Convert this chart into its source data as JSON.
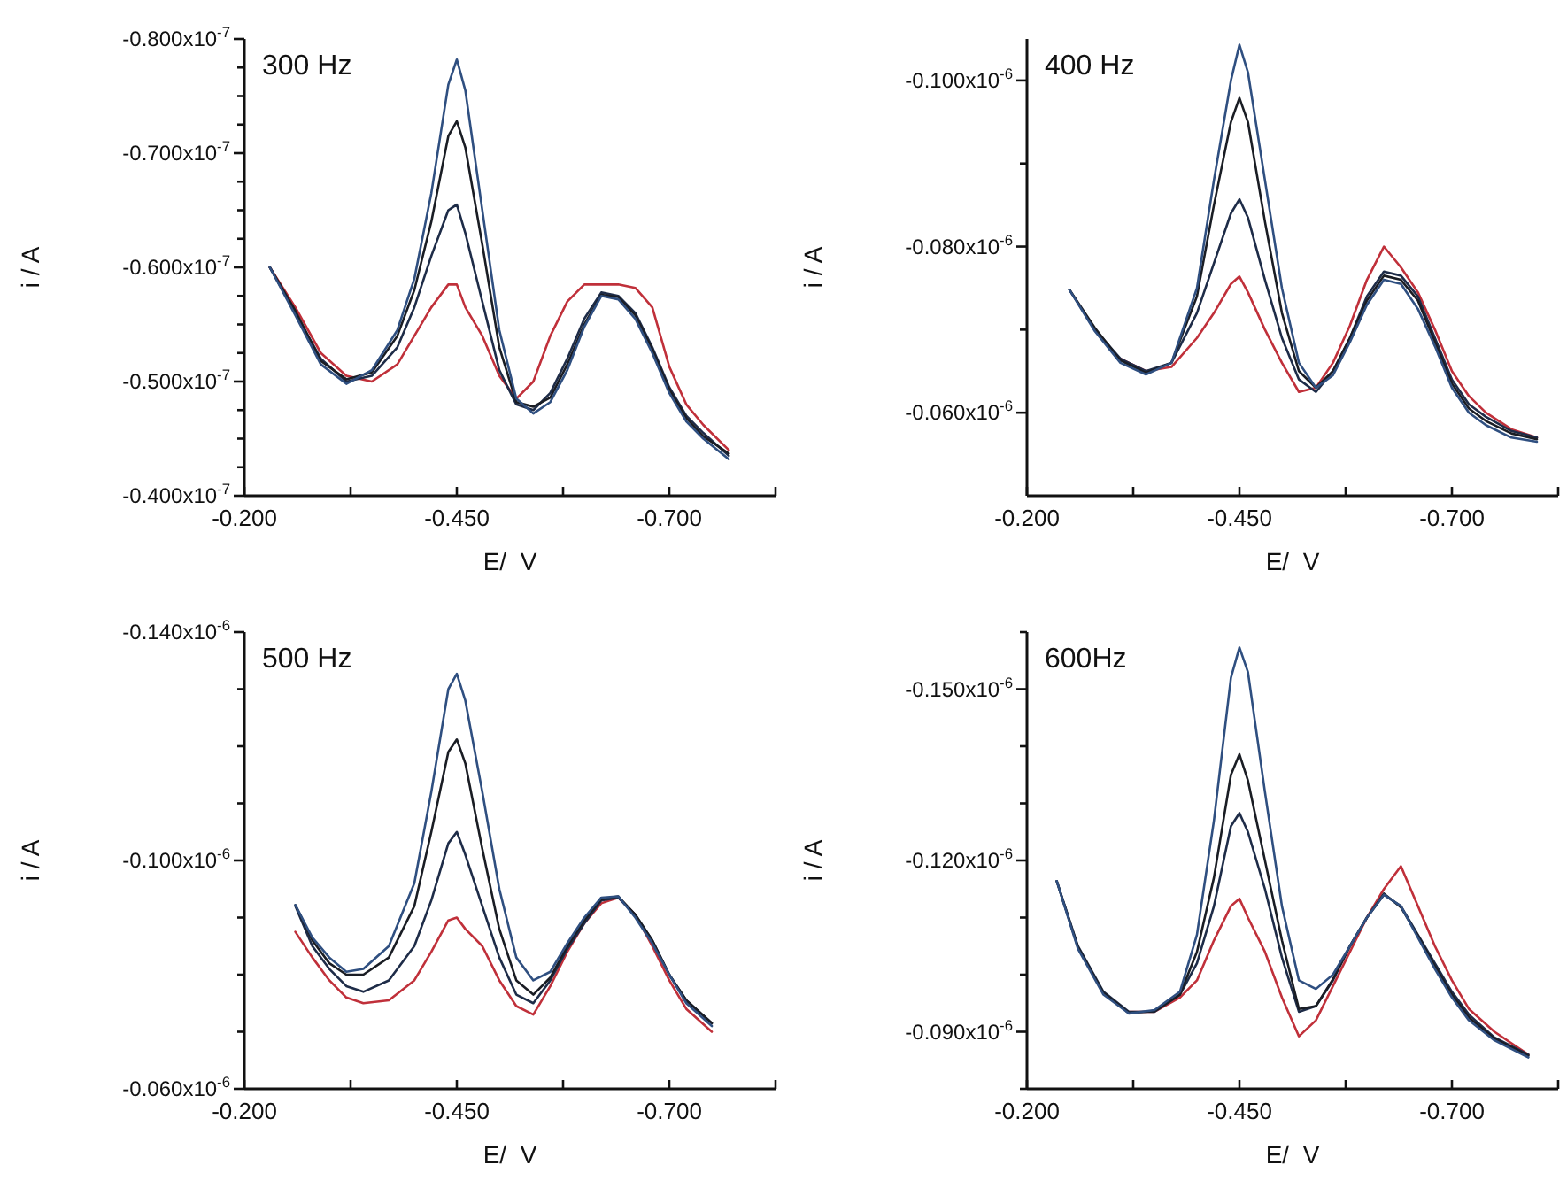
{
  "chart_data": [
    {
      "type": "line",
      "title": "300 Hz",
      "xlabel": "E/  V",
      "ylabel": "i / A",
      "xlim": [
        -0.2,
        -0.825
      ],
      "xticks": [
        {
          "value": -0.2,
          "label": "-0.200"
        },
        {
          "value": -0.325,
          "label": null
        },
        {
          "value": -0.45,
          "label": "-0.450"
        },
        {
          "value": -0.575,
          "label": null
        },
        {
          "value": -0.7,
          "label": "-0.700"
        },
        {
          "value": -0.825,
          "label": null
        }
      ],
      "ylim": [
        -4e-08,
        -8e-08
      ],
      "yticks": [
        {
          "value": -4e-08,
          "label": "-0.400x10$^{-7}$"
        },
        {
          "value": -4.25e-08,
          "label": null
        },
        {
          "value": -4.5e-08,
          "label": null
        },
        {
          "value": -4.75e-08,
          "label": null
        },
        {
          "value": -5e-08,
          "label": "-0.500x10$^{-7}$"
        },
        {
          "value": -5.25e-08,
          "label": null
        },
        {
          "value": -5.5e-08,
          "label": null
        },
        {
          "value": -5.75e-08,
          "label": null
        },
        {
          "value": -6e-08,
          "label": "-0.600x10$^{-7}$"
        },
        {
          "value": -6.25e-08,
          "label": null
        },
        {
          "value": -6.5e-08,
          "label": null
        },
        {
          "value": -6.75e-08,
          "label": null
        },
        {
          "value": -7e-08,
          "label": "-0.700x10$^{-7}$"
        },
        {
          "value": -7.25e-08,
          "label": null
        },
        {
          "value": -7.5e-08,
          "label": null
        },
        {
          "value": -7.75e-08,
          "label": null
        },
        {
          "value": -8e-08,
          "label": "-0.800x10$^{-7}$"
        }
      ],
      "x": [
        -0.23,
        -0.26,
        -0.29,
        -0.32,
        -0.35,
        -0.38,
        -0.4,
        -0.42,
        -0.44,
        -0.45,
        -0.46,
        -0.48,
        -0.5,
        -0.52,
        -0.54,
        -0.56,
        -0.58,
        -0.6,
        -0.62,
        -0.64,
        -0.66,
        -0.68,
        -0.7,
        -0.72,
        -0.74,
        -0.77
      ],
      "series": [
        {
          "color": "#c0303a",
          "values": [
            -6e-08,
            -5.65e-08,
            -5.25e-08,
            -5.05e-08,
            -5e-08,
            -5.15e-08,
            -5.4e-08,
            -5.65e-08,
            -5.85e-08,
            -5.85e-08,
            -5.65e-08,
            -5.4e-08,
            -5.05e-08,
            -4.85e-08,
            -5e-08,
            -5.4e-08,
            -5.7e-08,
            -5.85e-08,
            -5.85e-08,
            -5.85e-08,
            -5.82e-08,
            -5.65e-08,
            -5.13e-08,
            -4.8e-08,
            -4.62e-08,
            -4.4e-08
          ]
        },
        {
          "color": "#1e2c48",
          "values": [
            -6e-08,
            -5.6e-08,
            -5.2e-08,
            -5e-08,
            -5.05e-08,
            -5.3e-08,
            -5.65e-08,
            -6.1e-08,
            -6.5e-08,
            -6.55e-08,
            -6.3e-08,
            -5.7e-08,
            -5.1e-08,
            -4.8e-08,
            -4.75e-08,
            -4.9e-08,
            -5.2e-08,
            -5.55e-08,
            -5.78e-08,
            -5.75e-08,
            -5.6e-08,
            -5.3e-08,
            -4.95e-08,
            -4.7e-08,
            -4.55e-08,
            -4.35e-08
          ]
        },
        {
          "color": "#1a1d24",
          "values": [
            -6e-08,
            -5.62e-08,
            -5.18e-08,
            -5.02e-08,
            -5.08e-08,
            -5.4e-08,
            -5.8e-08,
            -6.4e-08,
            -7.15e-08,
            -7.28e-08,
            -7.05e-08,
            -6.2e-08,
            -5.3e-08,
            -4.82e-08,
            -4.78e-08,
            -4.86e-08,
            -5.15e-08,
            -5.5e-08,
            -5.76e-08,
            -5.74e-08,
            -5.58e-08,
            -5.28e-08,
            -4.93e-08,
            -4.68e-08,
            -4.52e-08,
            -4.37e-08
          ]
        },
        {
          "color": "#2f4f80",
          "values": [
            -6e-08,
            -5.58e-08,
            -5.15e-08,
            -4.98e-08,
            -5.1e-08,
            -5.45e-08,
            -5.9e-08,
            -6.65e-08,
            -7.6e-08,
            -7.82e-08,
            -7.55e-08,
            -6.5e-08,
            -5.45e-08,
            -4.85e-08,
            -4.72e-08,
            -4.82e-08,
            -5.1e-08,
            -5.48e-08,
            -5.75e-08,
            -5.72e-08,
            -5.55e-08,
            -5.25e-08,
            -4.9e-08,
            -4.65e-08,
            -4.5e-08,
            -4.32e-08
          ]
        }
      ]
    },
    {
      "type": "line",
      "title": "400 Hz",
      "xlabel": "E/  V",
      "ylabel": "i / A",
      "xlim": [
        -0.2,
        -0.825
      ],
      "xticks": [
        {
          "value": -0.2,
          "label": "-0.200"
        },
        {
          "value": -0.325,
          "label": null
        },
        {
          "value": -0.45,
          "label": "-0.450"
        },
        {
          "value": -0.575,
          "label": null
        },
        {
          "value": -0.7,
          "label": "-0.700"
        },
        {
          "value": -0.825,
          "label": null
        }
      ],
      "ylim": [
        -5e-08,
        -1.05e-07
      ],
      "yticks": [
        {
          "value": -6e-08,
          "label": "-0.060x10$^{-6}$"
        },
        {
          "value": -7e-08,
          "label": null
        },
        {
          "value": -8e-08,
          "label": "-0.080x10$^{-6}$"
        },
        {
          "value": -9e-08,
          "label": null
        },
        {
          "value": -1e-07,
          "label": "-0.100x10$^{-6}$"
        }
      ],
      "x": [
        -0.25,
        -0.28,
        -0.31,
        -0.34,
        -0.37,
        -0.4,
        -0.42,
        -0.44,
        -0.45,
        -0.46,
        -0.48,
        -0.5,
        -0.52,
        -0.54,
        -0.56,
        -0.58,
        -0.6,
        -0.62,
        -0.64,
        -0.66,
        -0.68,
        -0.7,
        -0.72,
        -0.74,
        -0.77,
        -0.8
      ],
      "series": [
        {
          "color": "#c0303a",
          "values": [
            null,
            null,
            -6.65e-08,
            -6.5e-08,
            -6.55e-08,
            -6.9e-08,
            -7.2e-08,
            -7.55e-08,
            -7.64e-08,
            -7.45e-08,
            -7e-08,
            -6.6e-08,
            -6.25e-08,
            -6.3e-08,
            -6.6e-08,
            -7.05e-08,
            -7.6e-08,
            -8e-08,
            -7.75e-08,
            -7.45e-08,
            -7e-08,
            -6.5e-08,
            -6.2e-08,
            -6e-08,
            -5.8e-08,
            -5.7e-08
          ]
        },
        {
          "color": "#1e2c48",
          "values": [
            -7.48e-08,
            -7e-08,
            -6.65e-08,
            -6.5e-08,
            -6.6e-08,
            -7.2e-08,
            -7.8e-08,
            -8.4e-08,
            -8.57e-08,
            -8.35e-08,
            -7.6e-08,
            -6.9e-08,
            -6.4e-08,
            -6.25e-08,
            -6.5e-08,
            -6.9e-08,
            -7.4e-08,
            -7.7e-08,
            -7.65e-08,
            -7.4e-08,
            -6.9e-08,
            -6.4e-08,
            -6.1e-08,
            -5.95e-08,
            -5.78e-08,
            -5.7e-08
          ]
        },
        {
          "color": "#1a1d24",
          "values": [
            -7.48e-08,
            -7.02e-08,
            -6.63e-08,
            -6.48e-08,
            -6.6e-08,
            -7.4e-08,
            -8.5e-08,
            -9.5e-08,
            -9.79e-08,
            -9.5e-08,
            -8.3e-08,
            -7.2e-08,
            -6.5e-08,
            -6.3e-08,
            -6.5e-08,
            -6.9e-08,
            -7.35e-08,
            -7.65e-08,
            -7.6e-08,
            -7.35e-08,
            -6.85e-08,
            -6.35e-08,
            -6.05e-08,
            -5.9e-08,
            -5.75e-08,
            -5.68e-08
          ]
        },
        {
          "color": "#2f4f80",
          "values": [
            -7.48e-08,
            -6.98e-08,
            -6.6e-08,
            -6.46e-08,
            -6.6e-08,
            -7.5e-08,
            -8.8e-08,
            -1e-07,
            -1.043e-07,
            -1.01e-07,
            -8.8e-08,
            -7.5e-08,
            -6.6e-08,
            -6.3e-08,
            -6.45e-08,
            -6.85e-08,
            -7.3e-08,
            -7.6e-08,
            -7.55e-08,
            -7.25e-08,
            -6.8e-08,
            -6.3e-08,
            -6e-08,
            -5.85e-08,
            -5.7e-08,
            -5.65e-08
          ]
        }
      ]
    },
    {
      "type": "line",
      "title": "500 Hz",
      "xlabel": "E/  V",
      "ylabel": "i / A",
      "xlim": [
        -0.2,
        -0.825
      ],
      "xticks": [
        {
          "value": -0.2,
          "label": "-0.200"
        },
        {
          "value": -0.325,
          "label": null
        },
        {
          "value": -0.45,
          "label": "-0.450"
        },
        {
          "value": -0.575,
          "label": null
        },
        {
          "value": -0.7,
          "label": "-0.700"
        },
        {
          "value": -0.825,
          "label": null
        }
      ],
      "ylim": [
        -6e-08,
        -1.4e-07
      ],
      "yticks": [
        {
          "value": -6e-08,
          "label": "-0.060x10$^{-6}$"
        },
        {
          "value": -7e-08,
          "label": null
        },
        {
          "value": -8e-08,
          "label": null
        },
        {
          "value": -9e-08,
          "label": null
        },
        {
          "value": -1e-07,
          "label": "-0.100x10$^{-6}$"
        },
        {
          "value": -1.1e-07,
          "label": null
        },
        {
          "value": -1.2e-07,
          "label": null
        },
        {
          "value": -1.3e-07,
          "label": null
        },
        {
          "value": -1.4e-07,
          "label": "-0.140x10$^{-6}$"
        }
      ],
      "x": [
        -0.26,
        -0.28,
        -0.3,
        -0.32,
        -0.34,
        -0.37,
        -0.4,
        -0.42,
        -0.44,
        -0.45,
        -0.46,
        -0.48,
        -0.5,
        -0.52,
        -0.54,
        -0.56,
        -0.58,
        -0.6,
        -0.62,
        -0.64,
        -0.66,
        -0.68,
        -0.7,
        -0.72,
        -0.75
      ],
      "series": [
        {
          "color": "#c0303a",
          "values": [
            -8.75e-08,
            -8.3e-08,
            -7.9e-08,
            -7.6e-08,
            -7.5e-08,
            -7.55e-08,
            -7.9e-08,
            -8.4e-08,
            -8.95e-08,
            -9e-08,
            -8.8e-08,
            -8.5e-08,
            -7.9e-08,
            -7.45e-08,
            -7.3e-08,
            -7.8e-08,
            -8.4e-08,
            -8.9e-08,
            -9.25e-08,
            -9.35e-08,
            -9.05e-08,
            -8.5e-08,
            -7.9e-08,
            -7.4e-08,
            -7e-08
          ]
        },
        {
          "color": "#1e2c48",
          "values": [
            -9.2e-08,
            -8.5e-08,
            -8.1e-08,
            -7.8e-08,
            -7.7e-08,
            -7.9e-08,
            -8.5e-08,
            -9.3e-08,
            -1.03e-07,
            -1.05e-07,
            -1.01e-07,
            -9.2e-08,
            -8.3e-08,
            -7.65e-08,
            -7.5e-08,
            -7.9e-08,
            -8.45e-08,
            -8.9e-08,
            -9.3e-08,
            -9.35e-08,
            -9.05e-08,
            -8.6e-08,
            -8e-08,
            -7.55e-08,
            -7.15e-08
          ]
        },
        {
          "color": "#1a1d24",
          "values": [
            -9.22e-08,
            -8.6e-08,
            -8.2e-08,
            -8e-08,
            -8e-08,
            -8.3e-08,
            -9.2e-08,
            -1.05e-07,
            -1.19e-07,
            -1.212e-07,
            -1.17e-07,
            -1.02e-07,
            -8.8e-08,
            -7.9e-08,
            -7.65e-08,
            -7.95e-08,
            -8.5e-08,
            -8.95e-08,
            -9.32e-08,
            -9.37e-08,
            -9.05e-08,
            -8.6e-08,
            -8e-08,
            -7.55e-08,
            -7.15e-08
          ]
        },
        {
          "color": "#2f4f80",
          "values": [
            -9.22e-08,
            -8.65e-08,
            -8.3e-08,
            -8.05e-08,
            -8.1e-08,
            -8.5e-08,
            -9.6e-08,
            -1.12e-07,
            -1.3e-07,
            -1.327e-07,
            -1.28e-07,
            -1.12e-07,
            -9.5e-08,
            -8.3e-08,
            -7.9e-08,
            -8.05e-08,
            -8.55e-08,
            -9e-08,
            -9.35e-08,
            -9.37e-08,
            -9e-08,
            -8.55e-08,
            -8e-08,
            -7.5e-08,
            -7.1e-08
          ]
        }
      ]
    },
    {
      "type": "line",
      "title": "600Hz",
      "xlabel": "E/  V",
      "ylabel": "i / A",
      "xlim": [
        -0.2,
        -0.825
      ],
      "xticks": [
        {
          "value": -0.2,
          "label": "-0.200"
        },
        {
          "value": -0.325,
          "label": null
        },
        {
          "value": -0.45,
          "label": "-0.450"
        },
        {
          "value": -0.575,
          "label": null
        },
        {
          "value": -0.7,
          "label": "-0.700"
        },
        {
          "value": -0.825,
          "label": null
        }
      ],
      "ylim": [
        -8e-08,
        -1.6e-07
      ],
      "yticks": [
        {
          "value": -8e-08,
          "label": null
        },
        {
          "value": -9e-08,
          "label": "-0.090x10$^{-6}$"
        },
        {
          "value": -1e-07,
          "label": null
        },
        {
          "value": -1.1e-07,
          "label": null
        },
        {
          "value": -1.2e-07,
          "label": "-0.120x10$^{-6}$"
        },
        {
          "value": -1.3e-07,
          "label": null
        },
        {
          "value": -1.4e-07,
          "label": null
        },
        {
          "value": -1.5e-07,
          "label": "-0.150x10$^{-6}$"
        },
        {
          "value": -1.6e-07,
          "label": null
        }
      ],
      "x": [
        -0.235,
        -0.26,
        -0.29,
        -0.32,
        -0.35,
        -0.38,
        -0.4,
        -0.42,
        -0.44,
        -0.45,
        -0.46,
        -0.48,
        -0.5,
        -0.52,
        -0.54,
        -0.56,
        -0.58,
        -0.6,
        -0.62,
        -0.64,
        -0.66,
        -0.68,
        -0.7,
        -0.72,
        -0.75,
        -0.79
      ],
      "series": [
        {
          "color": "#c0303a",
          "values": [
            null,
            null,
            null,
            -9.35e-08,
            -9.35e-08,
            -9.6e-08,
            -9.9e-08,
            -1.06e-07,
            -1.12e-07,
            -1.133e-07,
            -1.1e-07,
            -1.04e-07,
            -9.6e-08,
            -8.92e-08,
            -9.2e-08,
            -9.8e-08,
            -1.04e-07,
            -1.1e-07,
            -1.15e-07,
            -1.19e-07,
            -1.12e-07,
            -1.05e-07,
            -9.9e-08,
            -9.4e-08,
            -9e-08,
            -8.6e-08
          ]
        },
        {
          "color": "#1e2c48",
          "values": [
            -1.164e-07,
            -1.05e-07,
            -9.7e-08,
            -9.35e-08,
            -9.35e-08,
            -9.65e-08,
            -1.02e-07,
            -1.12e-07,
            -1.26e-07,
            -1.283e-07,
            -1.25e-07,
            -1.15e-07,
            -1.03e-07,
            -9.35e-08,
            -9.45e-08,
            -9.9e-08,
            -1.05e-07,
            -1.1e-07,
            -1.14e-07,
            -1.12e-07,
            -1.07e-07,
            -1.02e-07,
            -9.7e-08,
            -9.3e-08,
            -8.9e-08,
            -8.6e-08
          ]
        },
        {
          "color": "#1a1d24",
          "values": [
            -1.164e-07,
            -1.048e-07,
            -9.68e-08,
            -9.33e-08,
            -9.36e-08,
            -9.65e-08,
            -1.04e-07,
            -1.17e-07,
            -1.35e-07,
            -1.386e-07,
            -1.34e-07,
            -1.2e-07,
            -1.06e-07,
            -9.4e-08,
            -9.45e-08,
            -9.92e-08,
            -1.05e-07,
            -1.1e-07,
            -1.142e-07,
            -1.118e-07,
            -1.068e-07,
            -1.015e-07,
            -9.65e-08,
            -9.25e-08,
            -8.88e-08,
            -8.58e-08
          ]
        },
        {
          "color": "#2f4f80",
          "values": [
            -1.164e-07,
            -1.045e-07,
            -9.65e-08,
            -9.32e-08,
            -9.38e-08,
            -9.7e-08,
            -1.07e-07,
            -1.27e-07,
            -1.52e-07,
            -1.573e-07,
            -1.53e-07,
            -1.32e-07,
            -1.12e-07,
            -9.9e-08,
            -9.75e-08,
            -1e-07,
            -1.05e-07,
            -1.1e-07,
            -1.14e-07,
            -1.12e-07,
            -1.065e-07,
            -1.01e-07,
            -9.6e-08,
            -9.2e-08,
            -8.85e-08,
            -8.55e-08
          ]
        }
      ]
    }
  ]
}
